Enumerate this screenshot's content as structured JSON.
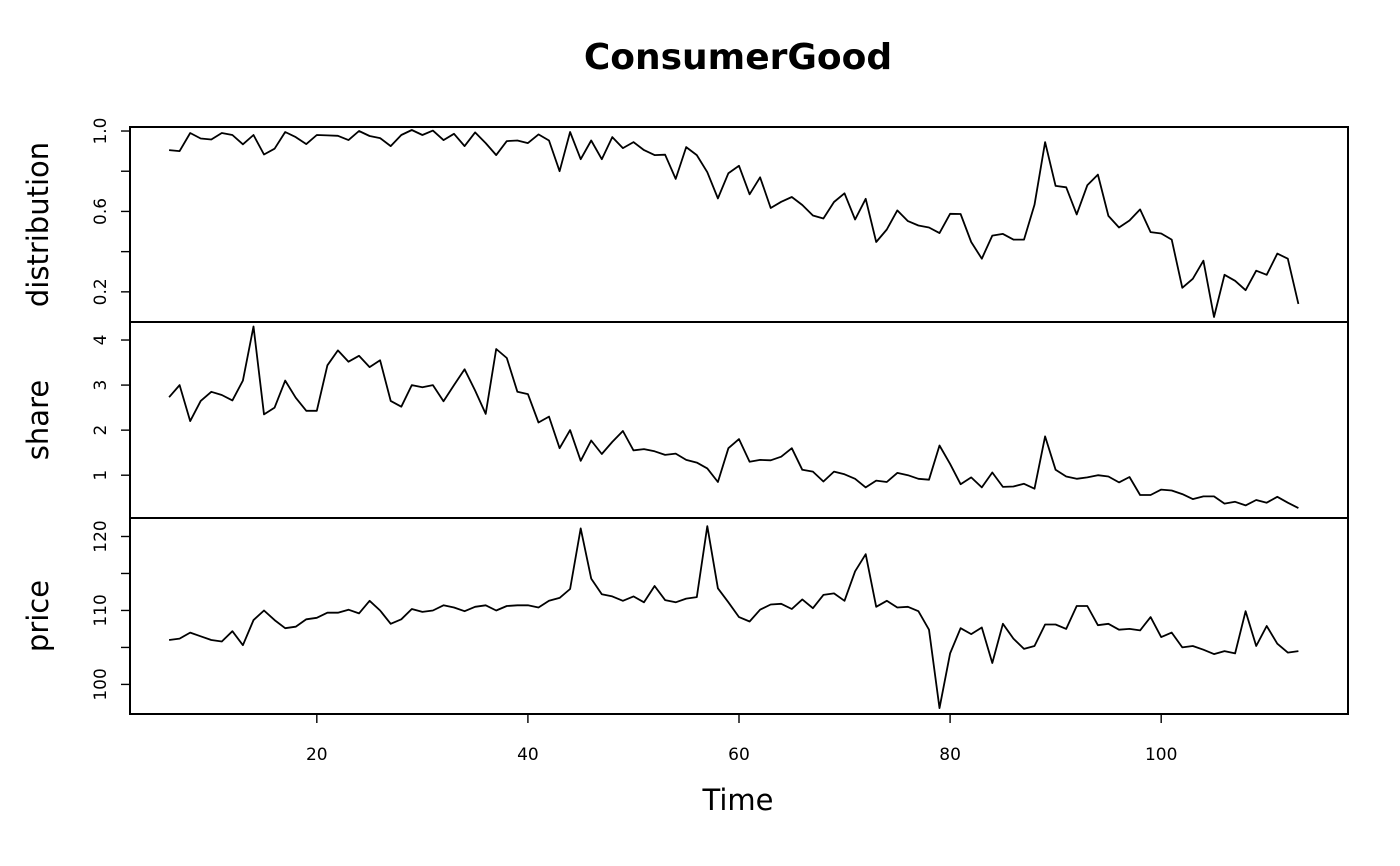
{
  "chart_data": {
    "type": "line",
    "title": "ConsumerGood",
    "xlabel": "Time",
    "xlim": [
      2.3,
      117.7
    ],
    "x_ticks": [
      20,
      40,
      60,
      80,
      100
    ],
    "x_start": 6,
    "panels": [
      {
        "name": "distribution",
        "ylim": [
          0.05,
          1.02
        ],
        "y_ticks": [
          0.2,
          0.4,
          0.6,
          0.8,
          1.0
        ],
        "y_tick_labels": [
          "0.2",
          "",
          "0.6",
          "",
          "1.0"
        ],
        "values": [
          0.905,
          0.9,
          0.99,
          0.963,
          0.958,
          0.99,
          0.98,
          0.934,
          0.98,
          0.883,
          0.912,
          0.995,
          0.97,
          0.935,
          0.98,
          0.978,
          0.976,
          0.955,
          1.0,
          0.975,
          0.965,
          0.925,
          0.98,
          1.005,
          0.98,
          1.002,
          0.955,
          0.986,
          0.925,
          0.993,
          0.94,
          0.88,
          0.95,
          0.953,
          0.94,
          0.983,
          0.953,
          0.8,
          0.995,
          0.86,
          0.953,
          0.86,
          0.97,
          0.915,
          0.945,
          0.905,
          0.88,
          0.882,
          0.762,
          0.92,
          0.88,
          0.795,
          0.665,
          0.79,
          0.827,
          0.685,
          0.77,
          0.617,
          0.648,
          0.672,
          0.632,
          0.58,
          0.565,
          0.647,
          0.69,
          0.56,
          0.663,
          0.448,
          0.51,
          0.605,
          0.552,
          0.53,
          0.52,
          0.492,
          0.588,
          0.587,
          0.448,
          0.365,
          0.48,
          0.488,
          0.46,
          0.46,
          0.633,
          0.945,
          0.727,
          0.72,
          0.585,
          0.73,
          0.783,
          0.578,
          0.52,
          0.555,
          0.61,
          0.497,
          0.49,
          0.46,
          0.22,
          0.265,
          0.355,
          0.075,
          0.285,
          0.255,
          0.208,
          0.305,
          0.285,
          0.39,
          0.365,
          0.14
        ]
      },
      {
        "name": "share",
        "ylim": [
          0.05,
          4.4
        ],
        "y_ticks": [
          1,
          2,
          3,
          4
        ],
        "y_tick_labels": [
          "1",
          "2",
          "3",
          "4"
        ],
        "values": [
          2.73,
          3.0,
          2.2,
          2.65,
          2.85,
          2.78,
          2.66,
          3.1,
          4.3,
          2.35,
          2.5,
          3.1,
          2.72,
          2.43,
          2.43,
          3.44,
          3.77,
          3.52,
          3.65,
          3.4,
          3.55,
          2.65,
          2.52,
          3.0,
          2.95,
          3.0,
          2.64,
          3.0,
          3.35,
          2.88,
          2.36,
          3.8,
          3.6,
          2.85,
          2.8,
          2.17,
          2.3,
          1.6,
          2.0,
          1.32,
          1.77,
          1.47,
          1.74,
          1.98,
          1.55,
          1.58,
          1.53,
          1.45,
          1.48,
          1.34,
          1.28,
          1.15,
          0.85,
          1.6,
          1.8,
          1.3,
          1.34,
          1.33,
          1.41,
          1.6,
          1.12,
          1.08,
          0.86,
          1.08,
          1.02,
          0.92,
          0.73,
          0.88,
          0.85,
          1.05,
          1.0,
          0.92,
          0.9,
          1.66,
          1.25,
          0.8,
          0.95,
          0.73,
          1.06,
          0.74,
          0.75,
          0.81,
          0.7,
          1.86,
          1.12,
          0.97,
          0.92,
          0.95,
          1.0,
          0.97,
          0.84,
          0.96,
          0.56,
          0.56,
          0.68,
          0.66,
          0.58,
          0.47,
          0.53,
          0.53,
          0.37,
          0.41,
          0.33,
          0.45,
          0.39,
          0.52,
          0.39,
          0.27
        ]
      },
      {
        "name": "price",
        "ylim": [
          96.0,
          122.5
        ],
        "y_ticks": [
          100,
          105,
          110,
          115,
          120
        ],
        "y_tick_labels": [
          "100",
          "",
          "110",
          "",
          "120"
        ],
        "values": [
          106.0,
          106.2,
          107.0,
          106.5,
          106.0,
          105.8,
          107.2,
          105.3,
          108.7,
          110.0,
          108.7,
          107.6,
          107.8,
          108.8,
          109.0,
          109.7,
          109.7,
          110.1,
          109.6,
          111.3,
          110.0,
          108.2,
          108.8,
          110.2,
          109.8,
          110.0,
          110.7,
          110.4,
          109.9,
          110.5,
          110.7,
          110.0,
          110.6,
          110.7,
          110.7,
          110.4,
          111.3,
          111.7,
          112.9,
          121.1,
          114.3,
          112.2,
          111.9,
          111.3,
          111.9,
          111.1,
          113.3,
          111.4,
          111.1,
          111.6,
          111.8,
          121.4,
          113.0,
          111.1,
          109.1,
          108.5,
          110.1,
          110.8,
          110.9,
          110.2,
          111.5,
          110.3,
          112.1,
          112.3,
          111.3,
          115.3,
          117.6,
          110.5,
          111.3,
          110.4,
          110.5,
          109.9,
          107.4,
          96.8,
          104.2,
          107.6,
          106.8,
          107.7,
          102.9,
          108.2,
          106.2,
          104.8,
          105.2,
          108.1,
          108.1,
          107.5,
          110.6,
          110.6,
          108.0,
          108.2,
          107.4,
          107.5,
          107.3,
          109.1,
          106.4,
          107.0,
          105.0,
          105.2,
          104.7,
          104.1,
          104.5,
          104.2,
          109.9,
          105.2,
          107.9,
          105.5,
          104.3,
          104.5
        ]
      }
    ]
  }
}
